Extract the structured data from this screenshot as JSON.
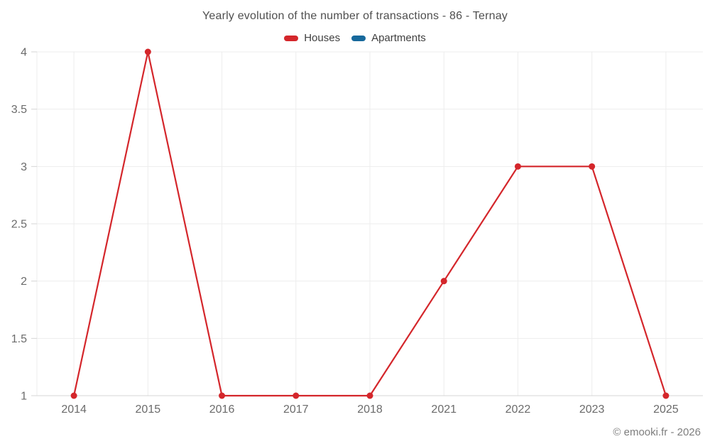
{
  "page": {
    "footer_credit": "© emooki.fr - 2026"
  },
  "chart_data": {
    "type": "line",
    "title": "Yearly evolution of the number of transactions - 86 - Ternay",
    "categories": [
      "2014",
      "2015",
      "2016",
      "2017",
      "2018",
      "2021",
      "2022",
      "2023",
      "2025"
    ],
    "series": [
      {
        "name": "Houses",
        "color": "#d4262b",
        "values": [
          1,
          4,
          1,
          1,
          1,
          2,
          3,
          3,
          1
        ]
      },
      {
        "name": "Apartments",
        "color": "#17699c",
        "values": []
      }
    ],
    "xlabel": "",
    "ylabel": "",
    "ylim": [
      1,
      4
    ],
    "yticks": [
      1,
      1.5,
      2,
      2.5,
      3,
      3.5,
      4
    ],
    "grid": true,
    "legend_position": "top"
  }
}
